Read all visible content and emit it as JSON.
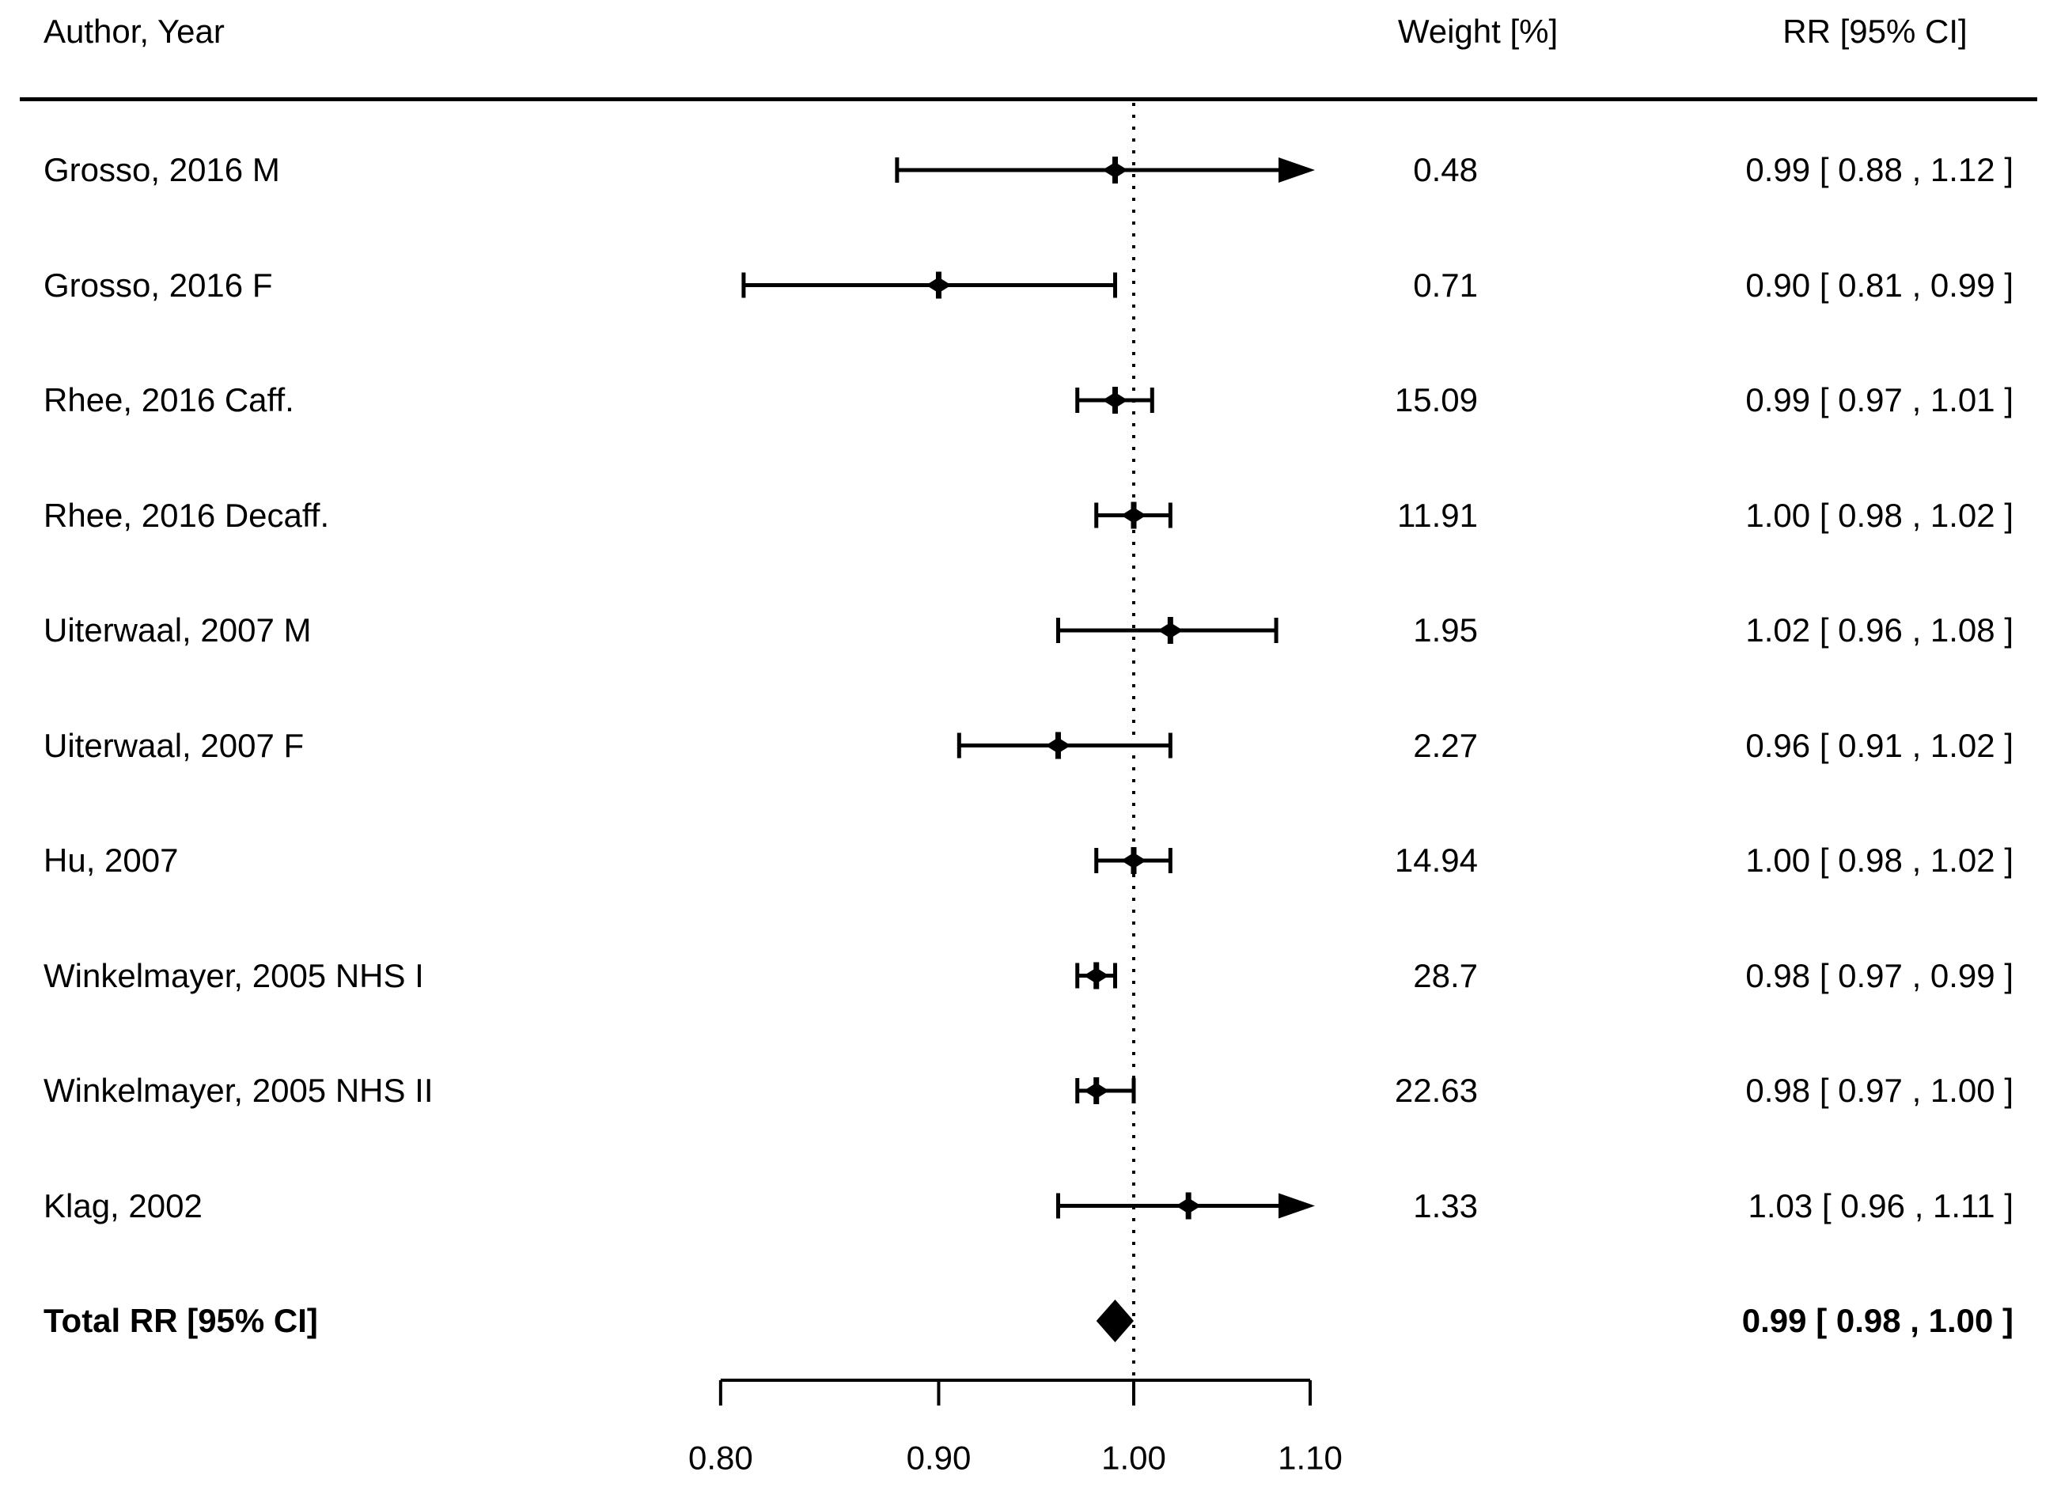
{
  "chart_data": {
    "type": "forest",
    "title": "",
    "x_scale": "log",
    "xlim": [
      0.8,
      1.1
    ],
    "ref_line": 1.0,
    "grid": false,
    "columns": {
      "study": "Author, Year",
      "weight": "Weight [%]",
      "rr": "RR [95% CI]"
    },
    "axis_ticks": [
      {
        "v": 0.8,
        "label": "0.80"
      },
      {
        "v": 0.9,
        "label": "0.90"
      },
      {
        "v": 1.0,
        "label": "1.00"
      },
      {
        "v": 1.1,
        "label": "1.10"
      }
    ],
    "studies": [
      {
        "label": "Grosso, 2016 M",
        "weight": "0.48",
        "rr": 0.99,
        "lo": 0.88,
        "hi": 1.12,
        "rr_text": "0.99 [ 0.88 , 1.12 ]"
      },
      {
        "label": "Grosso, 2016 F",
        "weight": "0.71",
        "rr": 0.9,
        "lo": 0.81,
        "hi": 0.99,
        "rr_text": "0.90 [ 0.81 , 0.99 ]"
      },
      {
        "label": "Rhee, 2016 Caff.",
        "weight": "15.09",
        "rr": 0.99,
        "lo": 0.97,
        "hi": 1.01,
        "rr_text": "0.99 [ 0.97 , 1.01 ]"
      },
      {
        "label": "Rhee, 2016 Decaff.",
        "weight": "11.91",
        "rr": 1.0,
        "lo": 0.98,
        "hi": 1.02,
        "rr_text": "1.00 [ 0.98 , 1.02 ]"
      },
      {
        "label": "Uiterwaal, 2007 M",
        "weight": "1.95",
        "rr": 1.02,
        "lo": 0.96,
        "hi": 1.08,
        "rr_text": "1.02 [ 0.96 , 1.08 ]"
      },
      {
        "label": "Uiterwaal, 2007 F",
        "weight": "2.27",
        "rr": 0.96,
        "lo": 0.91,
        "hi": 1.02,
        "rr_text": "0.96 [ 0.91 , 1.02 ]"
      },
      {
        "label": "Hu, 2007",
        "weight": "14.94",
        "rr": 1.0,
        "lo": 0.98,
        "hi": 1.02,
        "rr_text": "1.00 [ 0.98 , 1.02 ]"
      },
      {
        "label": "Winkelmayer, 2005 NHS I",
        "weight": "28.7",
        "rr": 0.98,
        "lo": 0.97,
        "hi": 0.99,
        "rr_text": "0.98 [ 0.97 , 0.99 ]"
      },
      {
        "label": "Winkelmayer, 2005 NHS II",
        "weight": "22.63",
        "rr": 0.98,
        "lo": 0.97,
        "hi": 1.0,
        "rr_text": "0.98 [ 0.97 , 1.00 ]"
      },
      {
        "label": "Klag, 2002",
        "weight": "1.33",
        "rr": 1.03,
        "lo": 0.96,
        "hi": 1.11,
        "rr_text": "1.03 [ 0.96 , 1.11 ]"
      }
    ],
    "total": {
      "label": "Total RR [95% CI]",
      "rr": 0.99,
      "lo": 0.98,
      "hi": 1.0,
      "rr_text": "0.99 [ 0.98 , 1.00 ]"
    },
    "colors": {
      "ink": "#000000",
      "background": "#ffffff"
    }
  }
}
